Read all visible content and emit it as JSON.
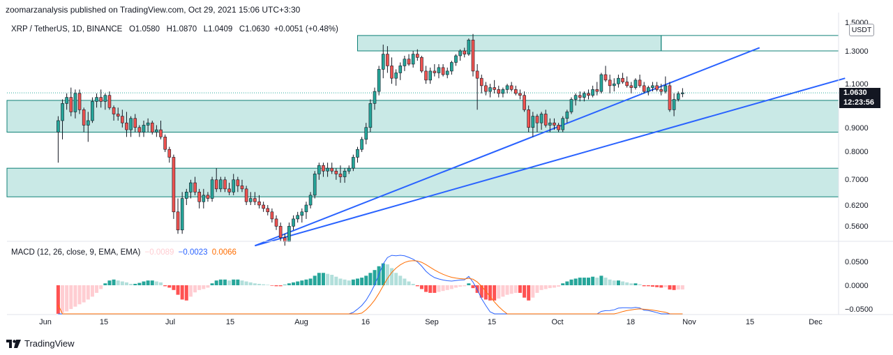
{
  "header": {
    "publisher": "zoomarzanalysis published on TradingView.com, Oct 29, 2021 15:06 UTC+3:30",
    "symbol": "XRP / TetherUS, 1D, BINANCE",
    "open": "O1.0580",
    "high": "H1.0870",
    "low": "L1.0409",
    "close": "C1.0630",
    "change": "+0.0051 (+0.48%)"
  },
  "price_scale": {
    "unit": "USDT",
    "ticks": [
      "1.5000",
      "1.3000",
      "1.1000",
      "0.9000",
      "0.8000",
      "0.7000",
      "0.6200",
      "0.5600"
    ],
    "last_price": "1.0630",
    "countdown": "12:23:56"
  },
  "macd": {
    "label": "MACD (12, 26, close, 9, EMA, EMA)",
    "histogram": "−0.0089",
    "macd_line": "−0.0023",
    "signal": "0.0066",
    "ticks": [
      "0.0500",
      "0.0000",
      "−0.0500"
    ]
  },
  "time_axis": [
    "Jun",
    "15",
    "Jul",
    "15",
    "Aug",
    "16",
    "Sep",
    "15",
    "Oct",
    "18",
    "Nov",
    "15",
    "Dec"
  ],
  "brand": "TradingView",
  "colors": {
    "up": "#26a69a",
    "down": "#ef5350",
    "zone_fill": "#b2dfdb",
    "zone_line": "#0d8076",
    "trendline": "#2962ff",
    "macd_line": "#2962ff",
    "signal_line": "#ff6d00"
  },
  "chart_data": {
    "type": "candlestick",
    "symbol": "XRP / TetherUS",
    "interval": "1D",
    "exchange": "BINANCE",
    "y_scale": "log",
    "last": 1.063,
    "x_range": [
      "2021-05-22",
      "2021-12-08"
    ],
    "zones": [
      {
        "from": "2021-08-13",
        "to": "2021-10-23",
        "low": 1.3,
        "high": 1.4
      },
      {
        "from": "2021-05-22",
        "to": "2021-12-08",
        "low": 0.88,
        "high": 1.025
      },
      {
        "from": "2021-05-22",
        "to": "2021-12-08",
        "low": 0.645,
        "high": 0.74
      }
    ],
    "trendlines": [
      {
        "from": [
          "2021-07-20",
          0.51
        ],
        "to": [
          "2021-11-15",
          1.32
        ]
      },
      {
        "from": [
          "2021-07-20",
          0.51
        ],
        "to": [
          "2021-12-05",
          1.14
        ]
      }
    ],
    "candles": [
      [
        0.88,
        0.95,
        0.76,
        0.93
      ],
      [
        0.93,
        1.03,
        0.85,
        1.01
      ],
      [
        1.01,
        1.06,
        0.98,
        1.04
      ],
      [
        1.04,
        1.09,
        0.95,
        0.97
      ],
      [
        0.97,
        1.08,
        0.94,
        1.06
      ],
      [
        1.06,
        1.08,
        0.96,
        0.98
      ],
      [
        0.98,
        0.99,
        0.88,
        0.91
      ],
      [
        0.91,
        0.97,
        0.84,
        0.93
      ],
      [
        0.93,
        1.04,
        0.92,
        1.02
      ],
      [
        1.02,
        1.06,
        0.99,
        1.04
      ],
      [
        1.04,
        1.08,
        0.99,
        1.02
      ],
      [
        1.02,
        1.06,
        0.98,
        1.05
      ],
      [
        1.05,
        1.07,
        0.98,
        0.99
      ],
      [
        0.99,
        1.0,
        0.93,
        0.96
      ],
      [
        0.96,
        0.99,
        0.93,
        0.95
      ],
      [
        0.95,
        0.98,
        0.9,
        0.92
      ],
      [
        0.92,
        0.97,
        0.86,
        0.89
      ],
      [
        0.89,
        0.95,
        0.86,
        0.94
      ],
      [
        0.94,
        0.96,
        0.88,
        0.9
      ],
      [
        0.9,
        0.91,
        0.86,
        0.88
      ],
      [
        0.88,
        0.93,
        0.86,
        0.91
      ],
      [
        0.91,
        0.94,
        0.88,
        0.92
      ],
      [
        0.92,
        0.93,
        0.87,
        0.88
      ],
      [
        0.88,
        0.91,
        0.86,
        0.89
      ],
      [
        0.89,
        0.93,
        0.85,
        0.86
      ],
      [
        0.86,
        0.87,
        0.8,
        0.81
      ],
      [
        0.81,
        0.82,
        0.76,
        0.78
      ],
      [
        0.78,
        0.79,
        0.58,
        0.6
      ],
      [
        0.6,
        0.64,
        0.54,
        0.55
      ],
      [
        0.55,
        0.66,
        0.54,
        0.64
      ],
      [
        0.64,
        0.67,
        0.62,
        0.66
      ],
      [
        0.66,
        0.7,
        0.64,
        0.69
      ],
      [
        0.69,
        0.71,
        0.65,
        0.66
      ],
      [
        0.66,
        0.67,
        0.61,
        0.63
      ],
      [
        0.63,
        0.67,
        0.61,
        0.65
      ],
      [
        0.65,
        0.66,
        0.63,
        0.64
      ],
      [
        0.64,
        0.71,
        0.63,
        0.7
      ],
      [
        0.7,
        0.74,
        0.66,
        0.67
      ],
      [
        0.67,
        0.71,
        0.66,
        0.7
      ],
      [
        0.7,
        0.71,
        0.66,
        0.67
      ],
      [
        0.67,
        0.69,
        0.65,
        0.66
      ],
      [
        0.66,
        0.72,
        0.65,
        0.7
      ],
      [
        0.7,
        0.71,
        0.66,
        0.68
      ],
      [
        0.68,
        0.7,
        0.66,
        0.67
      ],
      [
        0.67,
        0.68,
        0.62,
        0.63
      ],
      [
        0.63,
        0.66,
        0.62,
        0.64
      ],
      [
        0.64,
        0.66,
        0.62,
        0.63
      ],
      [
        0.63,
        0.65,
        0.61,
        0.62
      ],
      [
        0.62,
        0.63,
        0.6,
        0.61
      ],
      [
        0.61,
        0.62,
        0.59,
        0.6
      ],
      [
        0.6,
        0.61,
        0.57,
        0.58
      ],
      [
        0.58,
        0.59,
        0.55,
        0.56
      ],
      [
        0.56,
        0.57,
        0.52,
        0.53
      ],
      [
        0.53,
        0.54,
        0.51,
        0.52
      ],
      [
        0.52,
        0.57,
        0.52,
        0.56
      ],
      [
        0.56,
        0.59,
        0.55,
        0.58
      ],
      [
        0.58,
        0.6,
        0.57,
        0.59
      ],
      [
        0.59,
        0.61,
        0.57,
        0.6
      ],
      [
        0.6,
        0.63,
        0.58,
        0.62
      ],
      [
        0.62,
        0.66,
        0.61,
        0.65
      ],
      [
        0.65,
        0.73,
        0.64,
        0.72
      ],
      [
        0.72,
        0.76,
        0.7,
        0.75
      ],
      [
        0.75,
        0.76,
        0.71,
        0.73
      ],
      [
        0.73,
        0.76,
        0.71,
        0.74
      ],
      [
        0.74,
        0.76,
        0.72,
        0.73
      ],
      [
        0.73,
        0.74,
        0.7,
        0.72
      ],
      [
        0.72,
        0.75,
        0.69,
        0.71
      ],
      [
        0.71,
        0.74,
        0.69,
        0.73
      ],
      [
        0.73,
        0.75,
        0.72,
        0.74
      ],
      [
        0.74,
        0.79,
        0.73,
        0.78
      ],
      [
        0.78,
        0.82,
        0.76,
        0.81
      ],
      [
        0.81,
        0.86,
        0.8,
        0.85
      ],
      [
        0.85,
        0.92,
        0.83,
        0.9
      ],
      [
        0.9,
        1.03,
        0.88,
        1.01
      ],
      [
        1.01,
        1.09,
        0.98,
        1.07
      ],
      [
        1.07,
        1.21,
        1.05,
        1.19
      ],
      [
        1.19,
        1.34,
        1.14,
        1.28
      ],
      [
        1.28,
        1.33,
        1.17,
        1.21
      ],
      [
        1.21,
        1.26,
        1.11,
        1.14
      ],
      [
        1.14,
        1.19,
        1.1,
        1.17
      ],
      [
        1.17,
        1.23,
        1.13,
        1.21
      ],
      [
        1.21,
        1.27,
        1.18,
        1.25
      ],
      [
        1.25,
        1.28,
        1.21,
        1.22
      ],
      [
        1.22,
        1.3,
        1.2,
        1.28
      ],
      [
        1.28,
        1.31,
        1.24,
        1.26
      ],
      [
        1.26,
        1.27,
        1.17,
        1.18
      ],
      [
        1.18,
        1.21,
        1.11,
        1.13
      ],
      [
        1.13,
        1.2,
        1.11,
        1.18
      ],
      [
        1.18,
        1.22,
        1.15,
        1.17
      ],
      [
        1.17,
        1.22,
        1.14,
        1.2
      ],
      [
        1.2,
        1.22,
        1.15,
        1.16
      ],
      [
        1.16,
        1.2,
        1.14,
        1.18
      ],
      [
        1.18,
        1.24,
        1.16,
        1.23
      ],
      [
        1.23,
        1.28,
        1.21,
        1.27
      ],
      [
        1.27,
        1.31,
        1.24,
        1.3
      ],
      [
        1.3,
        1.32,
        1.26,
        1.28
      ],
      [
        1.28,
        1.38,
        1.27,
        1.37
      ],
      [
        1.37,
        1.41,
        1.15,
        1.18
      ],
      [
        1.18,
        1.22,
        0.98,
        1.14
      ],
      [
        1.14,
        1.16,
        1.06,
        1.1
      ],
      [
        1.1,
        1.12,
        1.05,
        1.07
      ],
      [
        1.07,
        1.11,
        1.04,
        1.09
      ],
      [
        1.09,
        1.13,
        1.06,
        1.08
      ],
      [
        1.08,
        1.1,
        1.04,
        1.06
      ],
      [
        1.06,
        1.09,
        1.04,
        1.08
      ],
      [
        1.08,
        1.11,
        1.06,
        1.1
      ],
      [
        1.1,
        1.12,
        1.07,
        1.08
      ],
      [
        1.08,
        1.1,
        1.05,
        1.06
      ],
      [
        1.06,
        1.08,
        1.03,
        1.05
      ],
      [
        1.05,
        1.07,
        0.97,
        0.98
      ],
      [
        0.98,
        1.0,
        0.88,
        0.9
      ],
      [
        0.9,
        0.97,
        0.86,
        0.95
      ],
      [
        0.95,
        0.96,
        0.88,
        0.92
      ],
      [
        0.92,
        0.97,
        0.89,
        0.96
      ],
      [
        0.96,
        0.98,
        0.9,
        0.91
      ],
      [
        0.91,
        0.94,
        0.88,
        0.92
      ],
      [
        0.92,
        0.94,
        0.89,
        0.91
      ],
      [
        0.91,
        0.92,
        0.88,
        0.89
      ],
      [
        0.89,
        0.95,
        0.88,
        0.94
      ],
      [
        0.94,
        0.98,
        0.92,
        0.97
      ],
      [
        0.97,
        1.04,
        0.96,
        1.03
      ],
      [
        1.03,
        1.06,
        1.0,
        1.05
      ],
      [
        1.05,
        1.07,
        1.02,
        1.04
      ],
      [
        1.04,
        1.07,
        1.02,
        1.06
      ],
      [
        1.06,
        1.08,
        1.03,
        1.05
      ],
      [
        1.05,
        1.1,
        1.04,
        1.08
      ],
      [
        1.08,
        1.12,
        1.05,
        1.07
      ],
      [
        1.07,
        1.17,
        1.06,
        1.16
      ],
      [
        1.16,
        1.21,
        1.12,
        1.13
      ],
      [
        1.13,
        1.16,
        1.06,
        1.1
      ],
      [
        1.1,
        1.14,
        1.07,
        1.11
      ],
      [
        1.11,
        1.16,
        1.09,
        1.14
      ],
      [
        1.14,
        1.17,
        1.11,
        1.12
      ],
      [
        1.12,
        1.15,
        1.09,
        1.1
      ],
      [
        1.1,
        1.12,
        1.06,
        1.09
      ],
      [
        1.09,
        1.14,
        1.08,
        1.13
      ],
      [
        1.13,
        1.16,
        1.09,
        1.1
      ],
      [
        1.1,
        1.12,
        1.06,
        1.07
      ],
      [
        1.07,
        1.1,
        1.05,
        1.09
      ],
      [
        1.09,
        1.12,
        1.07,
        1.1
      ],
      [
        1.1,
        1.12,
        1.07,
        1.08
      ],
      [
        1.08,
        1.11,
        1.05,
        1.07
      ],
      [
        1.07,
        1.15,
        1.06,
        1.1
      ],
      [
        1.1,
        1.12,
        0.97,
        0.98
      ],
      [
        0.98,
        1.06,
        0.95,
        1.03
      ],
      [
        1.03,
        1.07,
        1.02,
        1.058
      ],
      [
        1.058,
        1.087,
        1.0409,
        1.063
      ]
    ],
    "macd_hist": [
      -0.06,
      -0.058,
      -0.055,
      -0.05,
      -0.045,
      -0.04,
      -0.036,
      -0.03,
      -0.024,
      -0.016,
      -0.008,
      0.004,
      0.01,
      0.012,
      0.01,
      0.008,
      0.006,
      0.003,
      0.003,
      0.005,
      0.008,
      0.01,
      0.01,
      0.008,
      0.006,
      -0.002,
      -0.005,
      -0.01,
      -0.02,
      -0.03,
      -0.032,
      -0.024,
      -0.015,
      -0.01,
      -0.008,
      -0.005,
      0.004,
      0.01,
      0.012,
      0.012,
      0.01,
      0.012,
      0.012,
      0.01,
      0.008,
      0.006,
      0.004,
      0.003,
      0.002,
      0.001,
      -0.001,
      -0.002,
      -0.002,
      0.001,
      0.004,
      0.006,
      0.008,
      0.01,
      0.012,
      0.014,
      0.02,
      0.026,
      0.026,
      0.024,
      0.022,
      0.018,
      0.014,
      0.012,
      0.01,
      0.012,
      0.014,
      0.016,
      0.02,
      0.026,
      0.032,
      0.04,
      0.046,
      0.044,
      0.036,
      0.026,
      0.02,
      0.014,
      0.008,
      0.003,
      -0.002,
      -0.008,
      -0.014,
      -0.016,
      -0.016,
      -0.014,
      -0.012,
      -0.01,
      -0.008,
      -0.005,
      -0.003,
      -0.002,
      0.004,
      -0.006,
      -0.016,
      -0.026,
      -0.03,
      -0.032,
      -0.032,
      -0.028,
      -0.024,
      -0.02,
      -0.018,
      -0.016,
      -0.016,
      -0.026,
      -0.032,
      -0.026,
      -0.016,
      -0.01,
      -0.008,
      -0.006,
      -0.005,
      -0.003,
      0.004,
      0.008,
      0.012,
      0.014,
      0.016,
      0.016,
      0.016,
      0.018,
      0.016,
      0.02,
      0.016,
      0.012,
      0.01,
      0.01,
      0.008,
      0.006,
      0.004,
      0.004,
      0.002,
      -0.002,
      -0.002,
      -0.003,
      -0.004,
      -0.005,
      -0.004,
      -0.009,
      -0.01,
      -0.009,
      -0.0089
    ]
  }
}
